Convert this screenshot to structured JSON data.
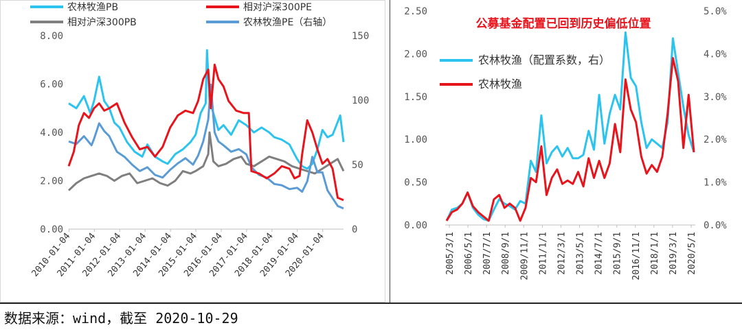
{
  "source_note": "数据来源：wind，截至 2020-10-29",
  "colors": {
    "cyan": "#2cc4ee",
    "red": "#e8141c",
    "gray": "#7f7f7f",
    "blue": "#5b9bd5"
  },
  "chart_data": [
    {
      "type": "line",
      "title": "",
      "legend_placement": "top",
      "left_axis": {
        "ylim": [
          0,
          8
        ],
        "ticks": [
          "0.00",
          "2.00",
          "4.00",
          "6.00",
          "8.00"
        ]
      },
      "right_axis": {
        "ylim": [
          0,
          150
        ],
        "ticks": [
          "0",
          "50",
          "100",
          "150"
        ]
      },
      "x_ticks": [
        "2010-01-04",
        "2011-01-04",
        "2012-01-04",
        "2013-01-04",
        "2014-01-04",
        "2015-01-04",
        "2016-01-04",
        "2017-01-04",
        "2018-01-04",
        "2019-01-04",
        "2020-01-04"
      ],
      "x_range": [
        2010.0,
        2020.83
      ],
      "series": [
        {
          "name": "农林牧渔PB",
          "axis": "left",
          "color": "#2cc4ee",
          "x": [
            2010.0,
            2010.3,
            2010.6,
            2010.85,
            2011.0,
            2011.2,
            2011.4,
            2011.6,
            2011.8,
            2012.0,
            2012.3,
            2012.6,
            2012.9,
            2013.1,
            2013.4,
            2013.7,
            2013.9,
            2014.2,
            2014.5,
            2014.8,
            2015.0,
            2015.2,
            2015.4,
            2015.45,
            2015.55,
            2015.7,
            2015.9,
            2016.1,
            2016.4,
            2016.7,
            2017.0,
            2017.3,
            2017.6,
            2017.9,
            2018.1,
            2018.4,
            2018.7,
            2019.0,
            2019.2,
            2019.4,
            2019.6,
            2019.8,
            2020.0,
            2020.2,
            2020.4,
            2020.55,
            2020.7,
            2020.83
          ],
          "y": [
            5.2,
            5.0,
            5.5,
            4.8,
            5.3,
            6.3,
            5.3,
            5.0,
            4.4,
            4.2,
            3.6,
            3.2,
            3.0,
            3.5,
            3.0,
            2.8,
            2.7,
            3.1,
            3.3,
            3.6,
            3.9,
            4.8,
            5.2,
            7.4,
            5.3,
            4.8,
            4.1,
            4.3,
            3.9,
            4.5,
            4.3,
            4.0,
            4.2,
            4.0,
            3.8,
            3.7,
            3.5,
            2.9,
            2.6,
            2.5,
            2.7,
            3.3,
            4.1,
            3.8,
            3.9,
            4.3,
            4.7,
            3.6
          ]
        },
        {
          "name": "相对沪深300PE",
          "axis": "left",
          "color": "#e8141c",
          "x": [
            2010.0,
            2010.2,
            2010.4,
            2010.6,
            2010.8,
            2011.0,
            2011.2,
            2011.4,
            2011.6,
            2011.9,
            2012.2,
            2012.5,
            2012.8,
            2013.1,
            2013.4,
            2013.7,
            2014.0,
            2014.3,
            2014.6,
            2014.9,
            2015.1,
            2015.3,
            2015.5,
            2015.6,
            2015.75,
            2015.9,
            2016.1,
            2016.3,
            2016.6,
            2016.9,
            2017.1,
            2017.2,
            2017.5,
            2017.8,
            2018.1,
            2018.4,
            2018.7,
            2018.9,
            2019.1,
            2019.2,
            2019.4,
            2019.6,
            2019.8,
            2020.0,
            2020.2,
            2020.4,
            2020.6,
            2020.83
          ],
          "y": [
            2.6,
            3.2,
            4.3,
            4.8,
            4.6,
            5.0,
            5.2,
            4.9,
            5.0,
            5.2,
            4.4,
            3.8,
            3.3,
            3.4,
            3.0,
            3.4,
            4.2,
            4.7,
            4.9,
            4.8,
            5.3,
            6.2,
            6.6,
            5.0,
            6.8,
            6.2,
            5.9,
            5.3,
            4.9,
            4.8,
            4.8,
            2.4,
            2.3,
            2.1,
            2.3,
            2.6,
            2.5,
            2.1,
            2.2,
            3.1,
            4.5,
            4.0,
            3.3,
            2.7,
            2.9,
            2.5,
            1.3,
            1.2
          ]
        },
        {
          "name": "相对沪深300PB",
          "axis": "left",
          "color": "#7f7f7f",
          "x": [
            2010.0,
            2010.3,
            2010.6,
            2010.9,
            2011.2,
            2011.5,
            2011.8,
            2012.1,
            2012.4,
            2012.7,
            2013.0,
            2013.3,
            2013.6,
            2013.9,
            2014.2,
            2014.5,
            2014.8,
            2015.0,
            2015.3,
            2015.5,
            2015.55,
            2015.7,
            2015.9,
            2016.2,
            2016.5,
            2016.8,
            2017.0,
            2017.3,
            2017.6,
            2017.9,
            2018.2,
            2018.5,
            2018.8,
            2019.1,
            2019.4,
            2019.7,
            2020.0,
            2020.3,
            2020.6,
            2020.83
          ],
          "y": [
            1.6,
            1.9,
            2.1,
            2.2,
            2.3,
            2.2,
            2.0,
            2.2,
            2.3,
            1.9,
            2.0,
            2.1,
            1.9,
            1.8,
            2.0,
            2.4,
            2.3,
            2.4,
            2.6,
            3.1,
            4.0,
            2.8,
            2.6,
            2.7,
            2.9,
            3.0,
            2.7,
            2.6,
            2.8,
            3.0,
            2.9,
            2.8,
            2.6,
            2.5,
            2.4,
            2.3,
            2.5,
            2.7,
            2.9,
            2.4
          ]
        },
        {
          "name": "农林牧渔PE（右轴）",
          "axis": "right",
          "color": "#5b9bd5",
          "x": [
            2010.0,
            2010.3,
            2010.6,
            2010.9,
            2011.0,
            2011.2,
            2011.4,
            2011.6,
            2011.9,
            2012.2,
            2012.5,
            2012.8,
            2013.1,
            2013.4,
            2013.7,
            2014.0,
            2014.3,
            2014.6,
            2014.9,
            2015.1,
            2015.3,
            2015.5,
            2015.6,
            2015.75,
            2015.9,
            2016.1,
            2016.4,
            2016.7,
            2017.0,
            2017.2,
            2017.5,
            2017.8,
            2018.1,
            2018.4,
            2018.7,
            2019.0,
            2019.2,
            2019.4,
            2019.6,
            2019.8,
            2020.0,
            2020.2,
            2020.4,
            2020.6,
            2020.83
          ],
          "y": [
            68,
            66,
            72,
            65,
            70,
            82,
            76,
            72,
            60,
            56,
            50,
            45,
            48,
            42,
            40,
            46,
            51,
            55,
            50,
            57,
            68,
            85,
            112,
            75,
            68,
            65,
            60,
            62,
            58,
            48,
            42,
            40,
            35,
            34,
            31,
            32,
            29,
            37,
            56,
            44,
            44,
            30,
            24,
            18,
            16
          ]
        }
      ]
    },
    {
      "type": "line",
      "title": "公募基金配置已回到历史偏低位置",
      "legend_placement": "top-left",
      "left_axis": {
        "ylim": [
          0,
          2.5
        ],
        "ticks": [
          "0.00",
          "0.50",
          "1.00",
          "1.50",
          "2.00",
          "2.50"
        ]
      },
      "right_axis": {
        "ylim": [
          0,
          5
        ],
        "ticks": [
          "0.0%",
          "1.0%",
          "2.0%",
          "3.0%",
          "4.0%",
          "5.0%"
        ]
      },
      "x_ticks": [
        "2005/3/1",
        "2006/5/1",
        "2007/7/1",
        "2008/9/1",
        "2009/11/1",
        "2011/1/1",
        "2012/3/1",
        "2013/5/1",
        "2014/7/1",
        "2015/9/1",
        "2016/11/1",
        "2018/1/1",
        "2019/3/1",
        "2020/5/1"
      ],
      "series": [
        {
          "name": "农林牧渔（配置系数，右）",
          "axis": "left",
          "color": "#2cc4ee",
          "values": [
            0.05,
            0.18,
            0.2,
            0.25,
            0.38,
            0.2,
            0.12,
            0.07,
            0.05,
            0.18,
            0.3,
            0.25,
            0.22,
            0.18,
            0.28,
            0.25,
            0.75,
            0.62,
            1.28,
            0.72,
            0.85,
            0.92,
            0.8,
            0.9,
            0.78,
            0.78,
            0.82,
            1.1,
            0.88,
            1.52,
            0.95,
            1.3,
            1.52,
            1.35,
            2.25,
            1.72,
            1.62,
            1.2,
            0.9,
            1.0,
            0.95,
            0.9,
            1.2,
            2.18,
            1.78,
            1.38,
            1.05,
            0.85
          ]
        },
        {
          "name": "农林牧渔",
          "axis": "left",
          "color": "#e8141c",
          "values": [
            0.05,
            0.15,
            0.18,
            0.25,
            0.38,
            0.22,
            0.15,
            0.1,
            0.05,
            0.3,
            0.35,
            0.2,
            0.25,
            0.2,
            0.05,
            0.2,
            0.55,
            0.5,
            0.92,
            0.35,
            0.55,
            0.65,
            0.48,
            0.52,
            0.48,
            0.62,
            0.45,
            0.78,
            0.55,
            0.75,
            0.55,
            0.72,
            1.18,
            0.85,
            1.7,
            1.35,
            1.2,
            0.8,
            0.6,
            0.7,
            0.62,
            0.8,
            1.3,
            1.95,
            1.68,
            0.9,
            1.52,
            0.85
          ]
        }
      ]
    }
  ]
}
